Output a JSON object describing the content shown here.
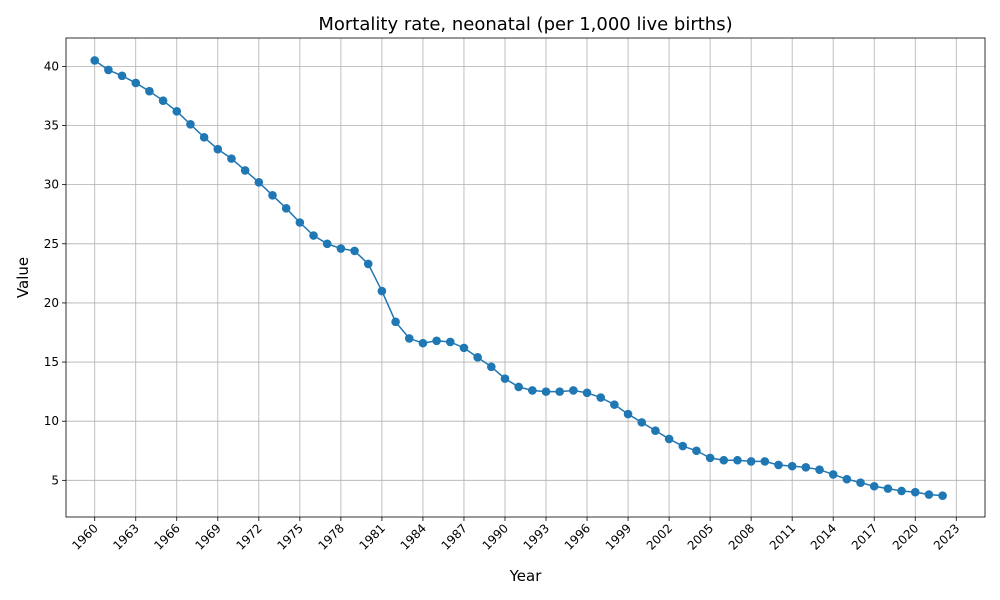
{
  "chart_data": {
    "type": "line",
    "title": "Mortality rate, neonatal (per 1,000 live births)",
    "xlabel": "Year",
    "ylabel": "Value",
    "xlim": [
      1957.9,
      2025.1
    ],
    "ylim": [
      1.9,
      42.4
    ],
    "x_ticks": [
      1960,
      1963,
      1966,
      1969,
      1972,
      1975,
      1978,
      1981,
      1984,
      1987,
      1990,
      1993,
      1996,
      1999,
      2002,
      2005,
      2008,
      2011,
      2014,
      2017,
      2020,
      2023
    ],
    "y_ticks": [
      5,
      10,
      15,
      20,
      25,
      30,
      35,
      40
    ],
    "grid": true,
    "color": "#1f77b4",
    "series": [
      {
        "x": [
          1960,
          1961,
          1962,
          1963,
          1964,
          1965,
          1966,
          1967,
          1968,
          1969,
          1970,
          1971,
          1972,
          1973,
          1974,
          1975,
          1976,
          1977,
          1978,
          1979,
          1980,
          1981,
          1982,
          1983,
          1984,
          1985,
          1986,
          1987,
          1988,
          1989,
          1990,
          1991,
          1992,
          1993,
          1994,
          1995,
          1996,
          1997,
          1998,
          1999,
          2000,
          2001,
          2002,
          2003,
          2004,
          2005,
          2006,
          2007,
          2008,
          2009,
          2010,
          2011,
          2012,
          2013,
          2014,
          2015,
          2016,
          2017,
          2018,
          2019,
          2020,
          2021,
          2022
        ],
        "values": [
          40.5,
          39.7,
          39.2,
          38.6,
          37.9,
          37.1,
          36.2,
          35.1,
          34.0,
          33.0,
          32.2,
          31.2,
          30.2,
          29.1,
          28.0,
          26.8,
          25.7,
          25.0,
          24.6,
          24.4,
          23.3,
          21.0,
          18.4,
          17.0,
          16.6,
          16.8,
          16.7,
          16.2,
          15.4,
          14.6,
          13.6,
          12.9,
          12.6,
          12.5,
          12.5,
          12.6,
          12.4,
          12.0,
          11.4,
          10.6,
          9.9,
          9.2,
          8.5,
          7.9,
          7.5,
          6.9,
          6.7,
          6.7,
          6.6,
          6.6,
          6.3,
          6.2,
          6.1,
          5.9,
          5.5,
          5.1,
          4.8,
          4.5,
          4.3,
          4.1,
          4.0,
          3.8,
          3.7
        ]
      }
    ]
  }
}
